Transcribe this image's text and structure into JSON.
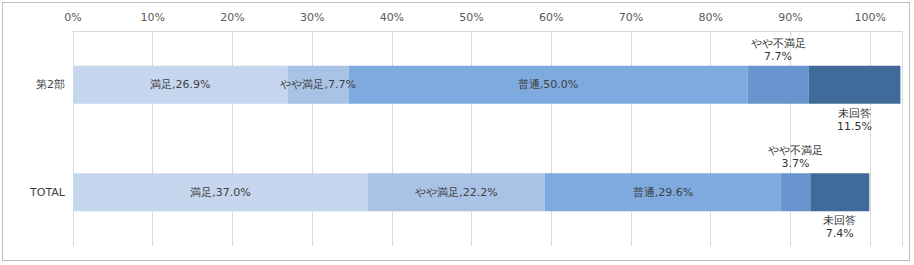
{
  "chart_data": {
    "type": "bar",
    "orientation": "horizontal",
    "stacked": true,
    "data_labels": true,
    "grid": true,
    "categories": [
      "第2部",
      "TOTAL"
    ],
    "xlim": [
      0,
      104
    ],
    "xticks": [
      {
        "value": 0,
        "label": "0%"
      },
      {
        "value": 10,
        "label": "10%"
      },
      {
        "value": 20,
        "label": "20%"
      },
      {
        "value": 30,
        "label": "30%"
      },
      {
        "value": 40,
        "label": "40%"
      },
      {
        "value": 50,
        "label": "50%"
      },
      {
        "value": 60,
        "label": "60%"
      },
      {
        "value": 70,
        "label": "70%"
      },
      {
        "value": 80,
        "label": "80%"
      },
      {
        "value": 90,
        "label": "90%"
      },
      {
        "value": 100,
        "label": "100%"
      }
    ],
    "series": [
      {
        "name": "満足",
        "color": "#c6d6ee",
        "values": [
          26.9,
          37.0
        ],
        "value_labels": [
          "満足,26.9%",
          "満足,37.0%"
        ]
      },
      {
        "name": "やや満足",
        "color": "#a9c3e7",
        "values": [
          7.7,
          22.2
        ],
        "value_labels": [
          "やや満足,7.7%",
          "やや満足,22.2%"
        ]
      },
      {
        "name": "普通",
        "color": "#7eaadf",
        "values": [
          50.0,
          29.6
        ],
        "value_labels": [
          "普通,50.0%",
          "普通,29.6%"
        ]
      },
      {
        "name": "やや不満足",
        "color": "#6895cd",
        "values": [
          7.7,
          3.7
        ],
        "value_labels": [
          "やや不満足\n7.7%",
          "やや不満足\n3.7%"
        ]
      },
      {
        "name": "未回答",
        "color": "#3f6a9a",
        "values": [
          11.5,
          7.4
        ],
        "value_labels": [
          "未回答\n11.5%",
          "未回答\n7.4%"
        ]
      }
    ]
  }
}
